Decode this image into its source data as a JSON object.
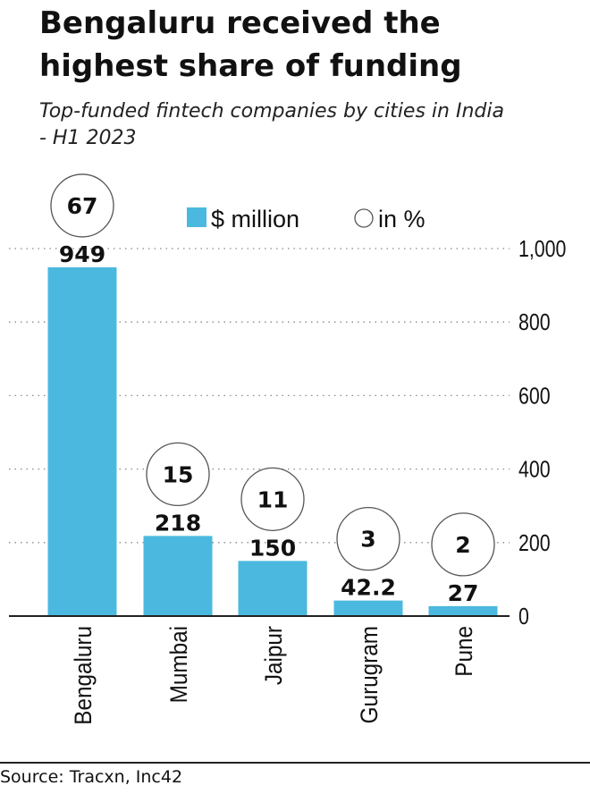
{
  "title": "Bengaluru received the highest share of funding",
  "subtitle": "Top-funded fintech companies by cities in India - H1 2023",
  "source": "Source: Tracxn, Inc42",
  "colors": {
    "bar": "#4bb9df",
    "axis": "#222222",
    "grid": "#8a8a8a"
  },
  "chart_data": {
    "type": "bar",
    "categories": [
      "Bengaluru",
      "Mumbai",
      "Jaipur",
      "Gurugram",
      "Pune"
    ],
    "series": [
      {
        "name": "$ million",
        "values": [
          949,
          218,
          150,
          42.2,
          27
        ],
        "labels": [
          "949",
          "218",
          "150",
          "42.2",
          "27"
        ]
      },
      {
        "name": "in %",
        "values": [
          67,
          15,
          11,
          3,
          2
        ],
        "labels": [
          "67",
          "15",
          "11",
          "3",
          "2"
        ]
      }
    ],
    "ylim": [
      0,
      1000
    ],
    "yticks": [
      0,
      200,
      400,
      600,
      800,
      1000
    ],
    "ytick_labels": [
      "0",
      "200",
      "400",
      "600",
      "800",
      "1,000"
    ],
    "grid": true,
    "legend": {
      "placement": "top",
      "entries": [
        "$ million",
        "in %"
      ]
    }
  }
}
